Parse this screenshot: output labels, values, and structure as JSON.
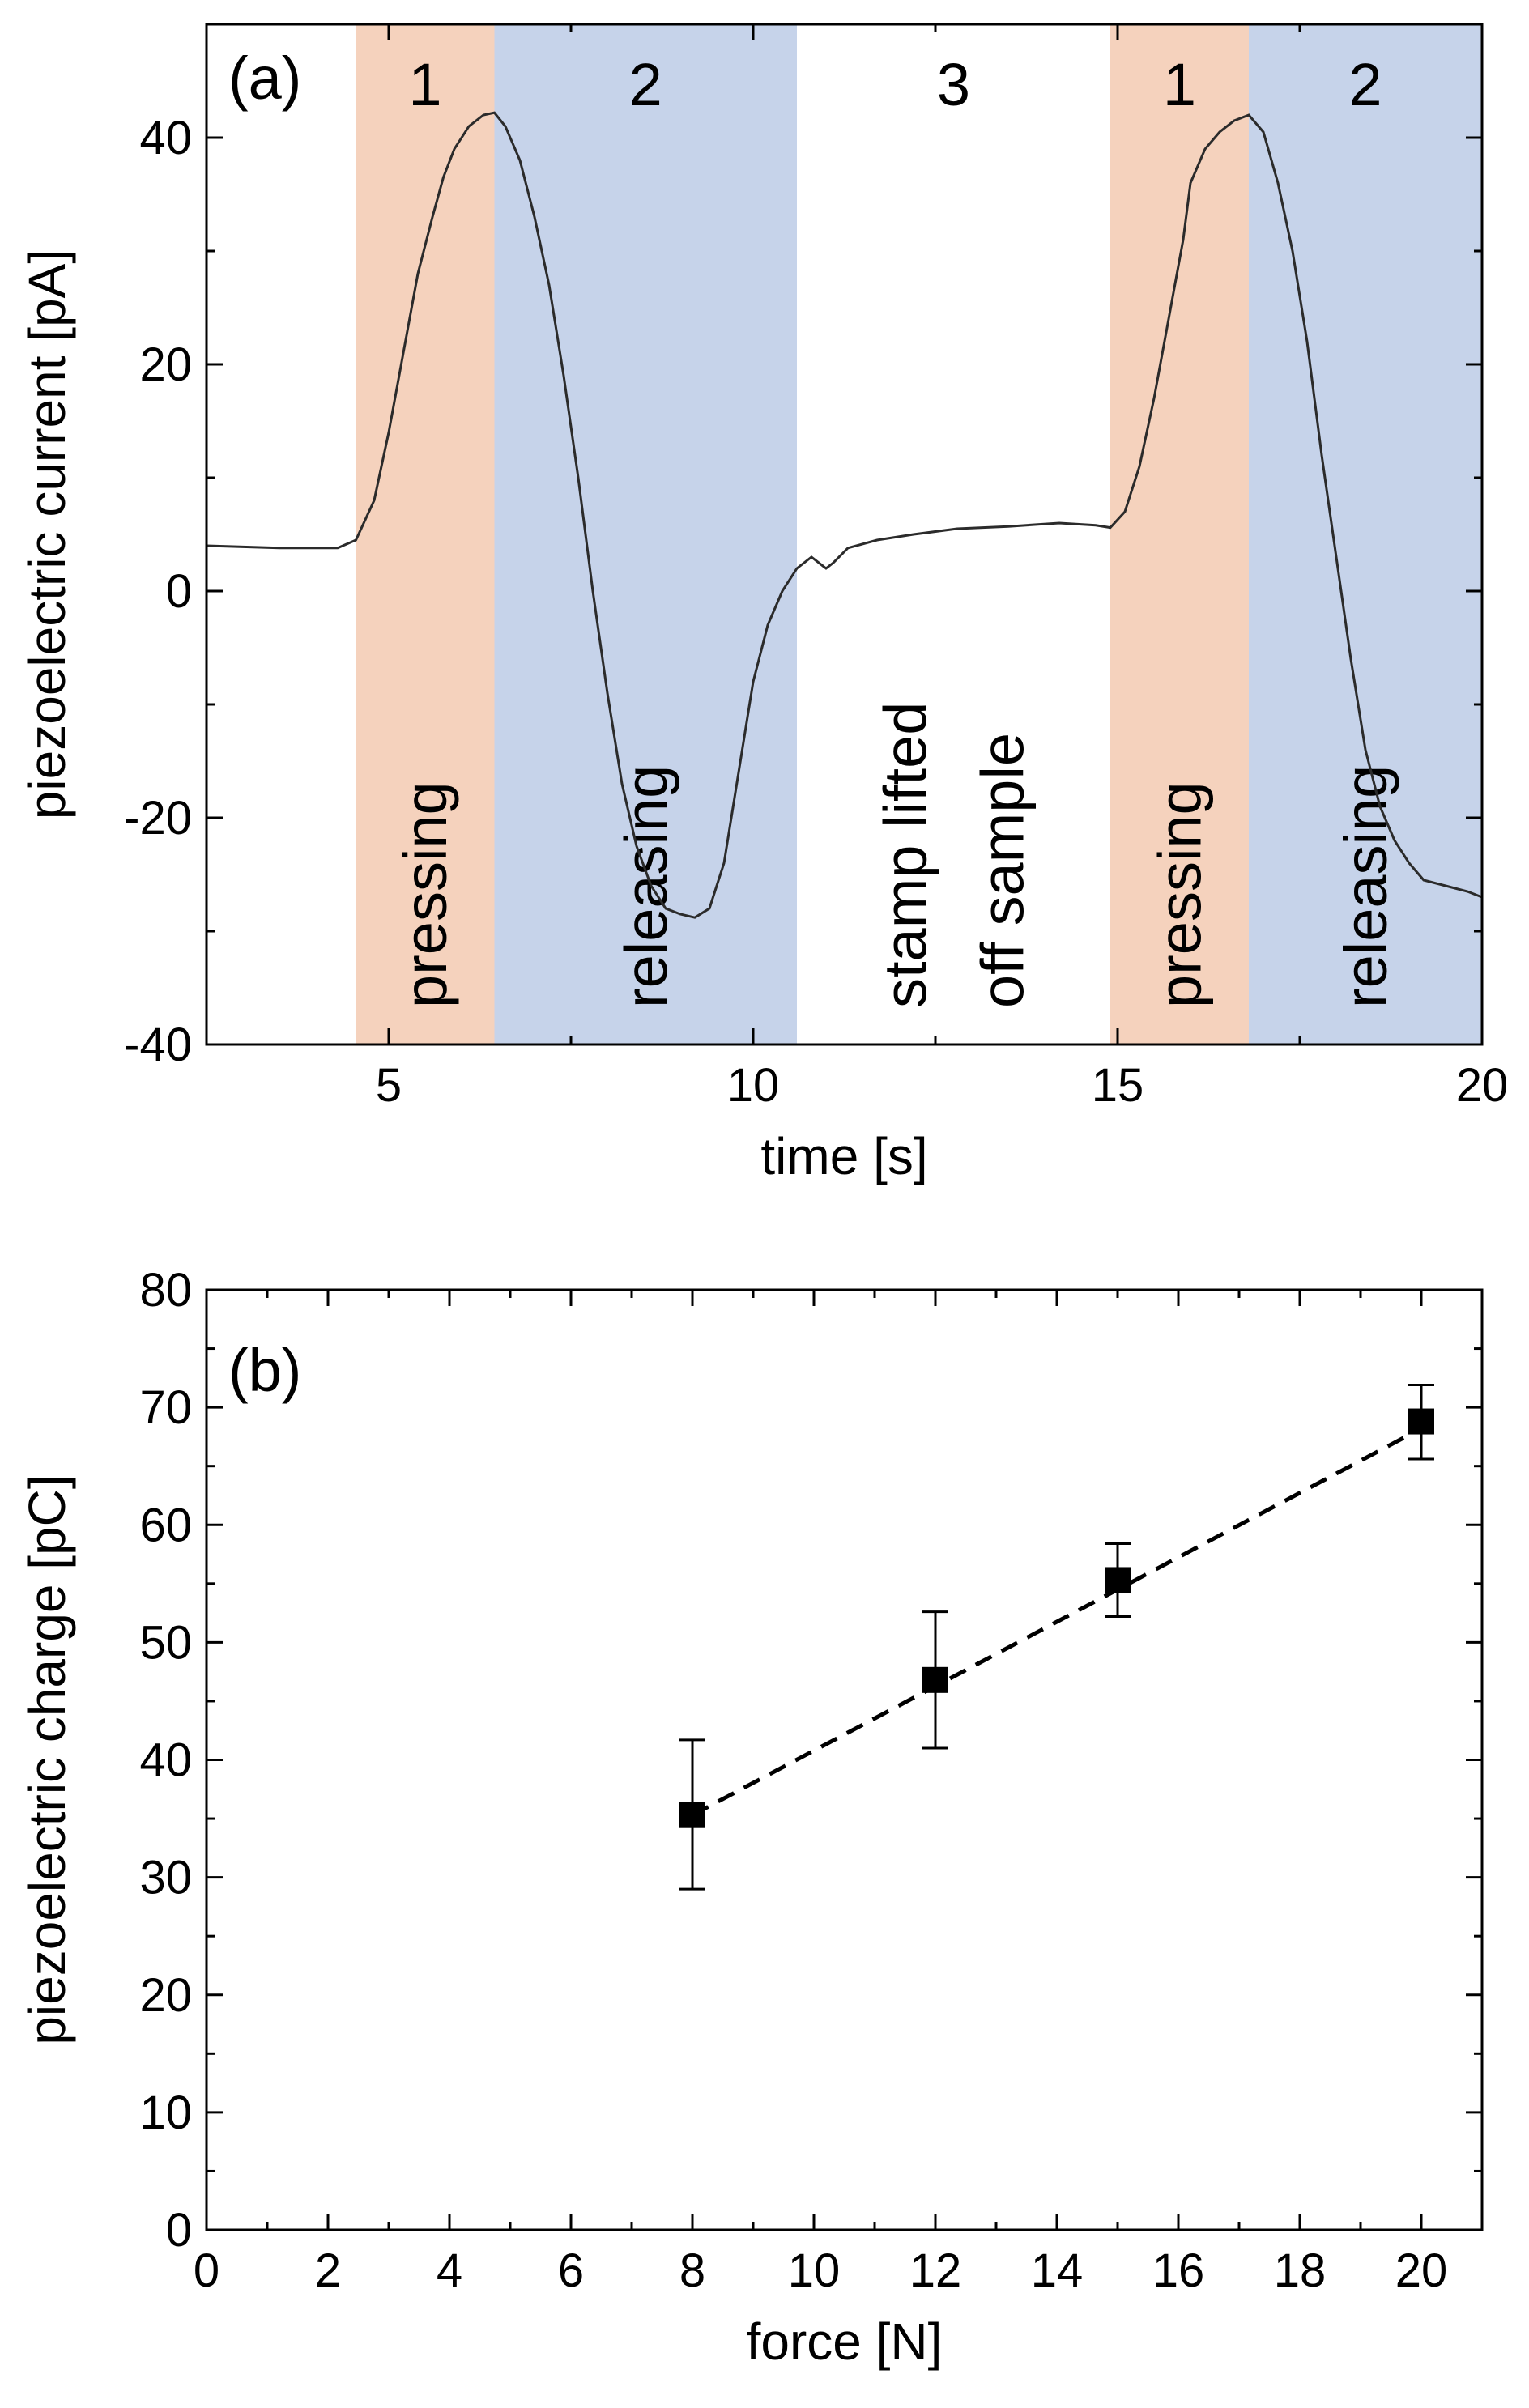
{
  "chart_data": [
    {
      "type": "line",
      "panel_label": "(a)",
      "xlabel": "time [s]",
      "ylabel": "piezoelectric current [pA]",
      "xlim": [
        2.5,
        20
      ],
      "ylim": [
        -40,
        50
      ],
      "x_ticks": [
        5,
        10,
        15,
        20
      ],
      "y_ticks": [
        -40,
        -20,
        0,
        20,
        40
      ],
      "colors": {
        "pressing": "#f5d2bd",
        "releasing": "#c6d3ea",
        "line": "#2b2b2b"
      },
      "regions": [
        {
          "label": "1",
          "kind": "pressing",
          "x0": 4.55,
          "x1": 6.45,
          "annotation": [
            "pressing"
          ]
        },
        {
          "label": "2",
          "kind": "releasing",
          "x0": 6.45,
          "x1": 10.6,
          "annotation": [
            "releasing"
          ]
        },
        {
          "label": "3",
          "kind": "none",
          "x0": 10.6,
          "x1": 14.9,
          "annotation": [
            "stamp lifted",
            "off sample"
          ]
        },
        {
          "label": "1",
          "kind": "pressing",
          "x0": 14.9,
          "x1": 16.8,
          "annotation": [
            "pressing"
          ]
        },
        {
          "label": "2",
          "kind": "releasing",
          "x0": 16.8,
          "x1": 20,
          "annotation": [
            "releasing"
          ]
        }
      ],
      "series": [
        {
          "name": "piezoelectric current",
          "x": [
            2.5,
            3.5,
            4.3,
            4.55,
            4.8,
            5.0,
            5.2,
            5.4,
            5.6,
            5.75,
            5.9,
            6.1,
            6.3,
            6.45,
            6.6,
            6.8,
            7.0,
            7.2,
            7.4,
            7.6,
            7.8,
            8.0,
            8.2,
            8.4,
            8.6,
            8.8,
            9.0,
            9.2,
            9.4,
            9.6,
            9.8,
            10.0,
            10.2,
            10.4,
            10.6,
            10.8,
            11.0,
            11.1,
            11.3,
            11.7,
            12.2,
            12.8,
            13.5,
            14.2,
            14.7,
            14.9,
            15.1,
            15.3,
            15.5,
            15.7,
            15.9,
            16.0,
            16.2,
            16.4,
            16.6,
            16.8,
            17.0,
            17.2,
            17.4,
            17.6,
            17.8,
            18.0,
            18.2,
            18.4,
            18.6,
            18.8,
            19.0,
            19.2,
            19.5,
            19.8,
            20.0
          ],
          "y": [
            4.0,
            3.8,
            3.8,
            4.5,
            8.0,
            14.0,
            21.0,
            28.0,
            33.0,
            36.5,
            39.0,
            41.0,
            42.0,
            42.2,
            41.0,
            38.0,
            33.0,
            27.0,
            19.0,
            10.0,
            0.0,
            -9.0,
            -17.0,
            -22.5,
            -26.0,
            -28.0,
            -28.5,
            -28.8,
            -28.0,
            -24.0,
            -16.0,
            -8.0,
            -3.0,
            0.0,
            2.0,
            3.0,
            2.0,
            2.5,
            3.8,
            4.5,
            5.0,
            5.5,
            5.7,
            6.0,
            5.8,
            5.6,
            7.0,
            11.0,
            17.0,
            24.0,
            31.0,
            36.0,
            39.0,
            40.5,
            41.5,
            42.0,
            40.5,
            36.0,
            30.0,
            22.0,
            12.0,
            3.0,
            -6.0,
            -14.0,
            -19.0,
            -22.0,
            -24.0,
            -25.5,
            -26.0,
            -26.5,
            -27.0
          ]
        }
      ]
    },
    {
      "type": "scatter",
      "panel_label": "(b)",
      "xlabel": "force [N]",
      "ylabel": "piezoelectric charge [pC]",
      "xlim": [
        0,
        21
      ],
      "ylim": [
        0,
        80
      ],
      "x_ticks": [
        0,
        2,
        4,
        6,
        8,
        10,
        12,
        14,
        16,
        18,
        20
      ],
      "y_ticks": [
        0,
        10,
        20,
        30,
        40,
        50,
        60,
        70,
        80
      ],
      "colors": {
        "marker": "#000000",
        "fit": "#000000"
      },
      "series": [
        {
          "name": "piezoelectric charge",
          "x": [
            8,
            12,
            15,
            20
          ],
          "y": [
            35.3,
            46.8,
            55.3,
            68.8
          ],
          "err_low": [
            29.0,
            41.0,
            52.2,
            65.6
          ],
          "err_high": [
            41.7,
            52.6,
            58.4,
            71.9
          ]
        }
      ],
      "fit": {
        "style": "dashed",
        "x": [
          8,
          20
        ],
        "y": [
          35.3,
          68.2
        ]
      }
    }
  ]
}
